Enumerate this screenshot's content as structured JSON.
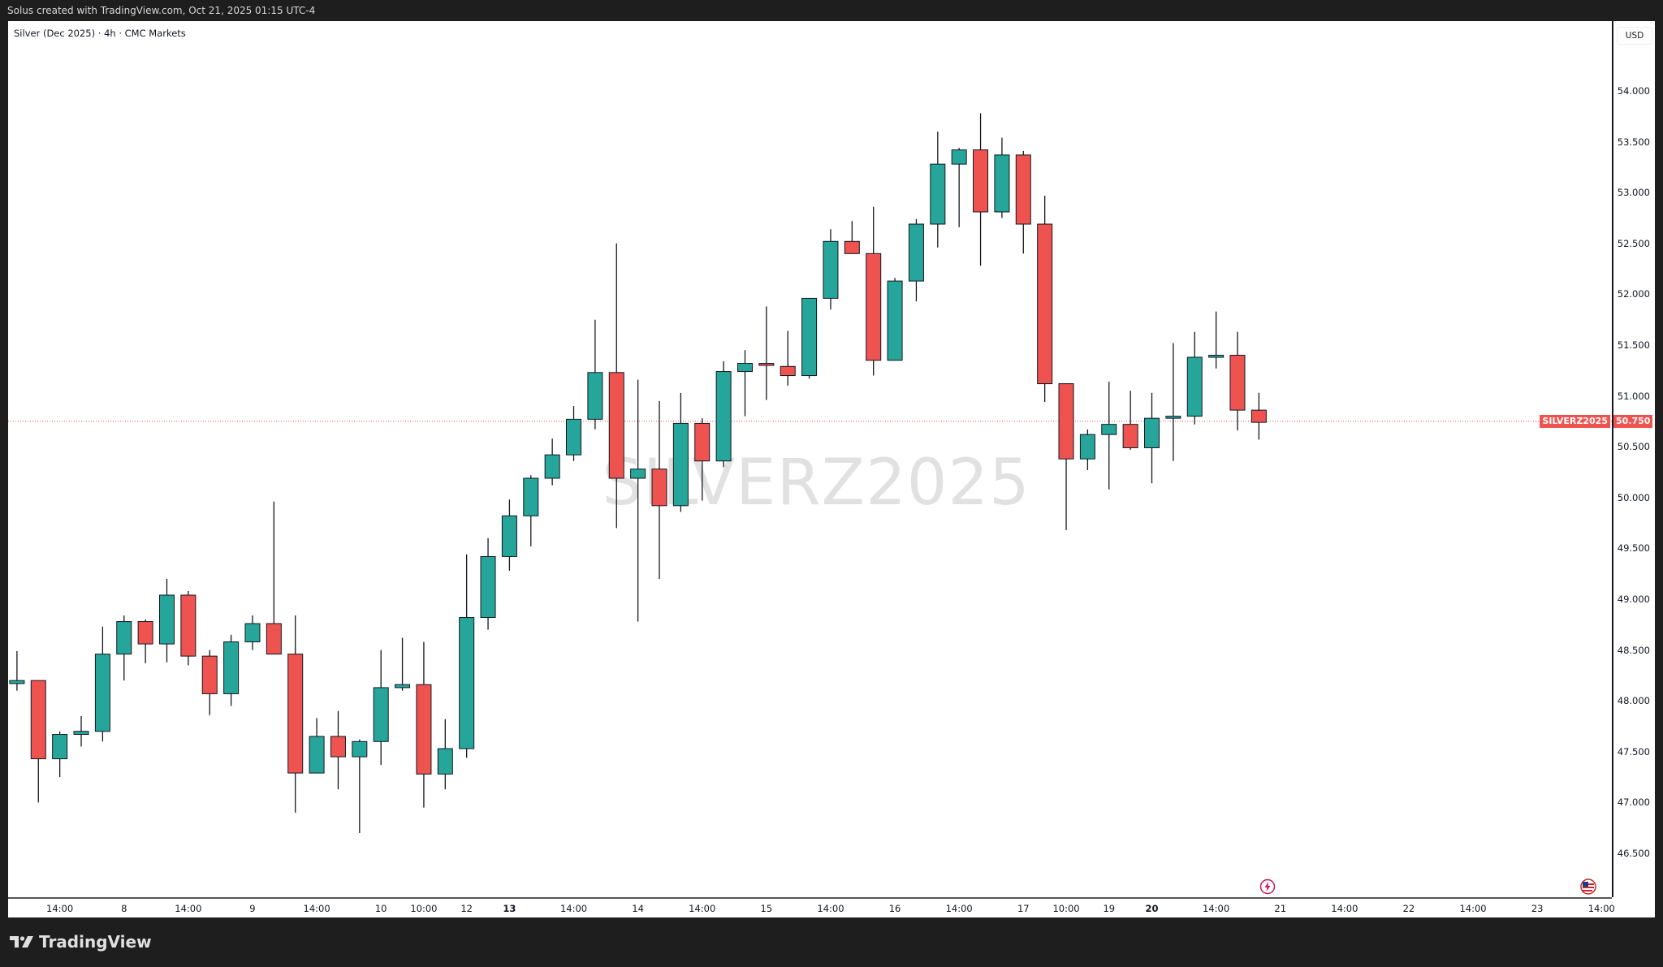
{
  "topbar": {
    "text": "Solus created with TradingView.com, Oct 21, 2025 01:15 UTC-4"
  },
  "legend": {
    "text": "Silver (Dec 2025) · 4h · CMC Markets"
  },
  "watermark": "SILVERZ2025",
  "price_axis": {
    "currency": "USD"
  },
  "current_price": {
    "symbol": "SILVERZ2025",
    "value": "50.750",
    "price": 50.75
  },
  "footer": {
    "brand": "TradingView"
  },
  "icons": [
    "lightning-icon",
    "us-flag-icon"
  ],
  "colors": {
    "up": "#26a69a",
    "down": "#ef5350",
    "price_line": "#ef5350"
  },
  "chart_data": {
    "type": "candlestick",
    "title": "Silver (Dec 2025) · 4h · CMC Markets",
    "ylim": [
      46.1,
      54.6
    ],
    "y_ticks": [
      "54.000",
      "53.500",
      "53.000",
      "52.500",
      "52.000",
      "51.500",
      "51.000",
      "50.500",
      "50.000",
      "49.500",
      "49.000",
      "48.500",
      "48.000",
      "47.500",
      "47.000",
      "46.500"
    ],
    "x_ticks": [
      {
        "label": "14:00",
        "bar": 2
      },
      {
        "label": "8",
        "bar": 5
      },
      {
        "label": "14:00",
        "bar": 8
      },
      {
        "label": "9",
        "bar": 11
      },
      {
        "label": "14:00",
        "bar": 14
      },
      {
        "label": "10",
        "bar": 17
      },
      {
        "label": "10:00",
        "bar": 19
      },
      {
        "label": "12",
        "bar": 21
      },
      {
        "label": "13",
        "bar": 23,
        "bold": true
      },
      {
        "label": "14:00",
        "bar": 26
      },
      {
        "label": "14",
        "bar": 29
      },
      {
        "label": "14:00",
        "bar": 32
      },
      {
        "label": "15",
        "bar": 35
      },
      {
        "label": "14:00",
        "bar": 38
      },
      {
        "label": "16",
        "bar": 41
      },
      {
        "label": "14:00",
        "bar": 44
      },
      {
        "label": "17",
        "bar": 47
      },
      {
        "label": "10:00",
        "bar": 49
      },
      {
        "label": "19",
        "bar": 51
      },
      {
        "label": "20",
        "bar": 53,
        "bold": true
      },
      {
        "label": "14:00",
        "bar": 56
      },
      {
        "label": "21",
        "bar": 59
      },
      {
        "label": "14:00",
        "bar": 62
      },
      {
        "label": "22",
        "bar": 65
      },
      {
        "label": "14:00",
        "bar": 68
      },
      {
        "label": "23",
        "bar": 71
      },
      {
        "label": "14:00",
        "bar": 74
      }
    ],
    "ohlc": [
      [
        48.17,
        48.49,
        48.1,
        48.2
      ],
      [
        48.2,
        48.2,
        47.0,
        47.43
      ],
      [
        47.43,
        47.7,
        47.25,
        47.67
      ],
      [
        47.67,
        47.85,
        47.55,
        47.7
      ],
      [
        47.7,
        48.73,
        47.6,
        48.46
      ],
      [
        48.46,
        48.84,
        48.2,
        48.78
      ],
      [
        48.78,
        48.8,
        48.37,
        48.56
      ],
      [
        48.56,
        49.2,
        48.38,
        49.04
      ],
      [
        49.04,
        49.08,
        48.35,
        48.44
      ],
      [
        48.44,
        48.5,
        47.86,
        48.07
      ],
      [
        48.07,
        48.65,
        47.95,
        48.58
      ],
      [
        48.58,
        48.84,
        48.5,
        48.76
      ],
      [
        48.76,
        49.96,
        48.46,
        48.46
      ],
      [
        48.46,
        48.84,
        46.9,
        47.29
      ],
      [
        47.29,
        47.83,
        47.29,
        47.65
      ],
      [
        47.65,
        47.9,
        47.13,
        47.45
      ],
      [
        47.45,
        47.62,
        46.7,
        47.6
      ],
      [
        47.6,
        48.5,
        47.37,
        48.13
      ],
      [
        48.13,
        48.62,
        48.1,
        48.16
      ],
      [
        48.16,
        48.58,
        46.95,
        47.28
      ],
      [
        47.28,
        47.82,
        47.13,
        47.53
      ],
      [
        47.53,
        49.44,
        47.44,
        48.82
      ],
      [
        48.82,
        49.6,
        48.7,
        49.42
      ],
      [
        49.42,
        49.98,
        49.28,
        49.82
      ],
      [
        49.82,
        50.22,
        49.52,
        50.19
      ],
      [
        50.19,
        50.58,
        50.12,
        50.42
      ],
      [
        50.42,
        50.9,
        50.36,
        50.77
      ],
      [
        50.77,
        51.75,
        50.67,
        51.23
      ],
      [
        51.23,
        52.5,
        49.7,
        50.19
      ],
      [
        50.19,
        51.16,
        48.78,
        50.28
      ],
      [
        50.28,
        50.95,
        49.2,
        49.92
      ],
      [
        49.92,
        51.03,
        49.86,
        50.73
      ],
      [
        50.73,
        50.78,
        49.97,
        50.36
      ],
      [
        50.36,
        51.34,
        50.3,
        51.24
      ],
      [
        51.24,
        51.45,
        50.8,
        51.32
      ],
      [
        51.32,
        51.88,
        50.96,
        51.3
      ],
      [
        51.29,
        51.64,
        51.1,
        51.2
      ],
      [
        51.2,
        51.96,
        51.17,
        51.96
      ],
      [
        51.96,
        52.64,
        51.85,
        52.52
      ],
      [
        52.52,
        52.72,
        52.4,
        52.4
      ],
      [
        52.4,
        52.86,
        51.2,
        51.35
      ],
      [
        51.35,
        52.16,
        51.35,
        52.13
      ],
      [
        52.13,
        52.74,
        51.93,
        52.69
      ],
      [
        52.69,
        53.6,
        52.46,
        53.28
      ],
      [
        53.28,
        53.44,
        52.66,
        53.42
      ],
      [
        53.42,
        53.78,
        52.28,
        52.81
      ],
      [
        52.81,
        53.54,
        52.75,
        53.37
      ],
      [
        53.37,
        53.41,
        52.4,
        52.69
      ],
      [
        52.69,
        52.97,
        50.94,
        51.12
      ],
      [
        51.12,
        51.12,
        49.68,
        50.38
      ],
      [
        50.38,
        50.67,
        50.27,
        50.62
      ],
      [
        50.62,
        51.14,
        50.08,
        50.72
      ],
      [
        50.72,
        51.05,
        50.47,
        50.49
      ],
      [
        50.49,
        51.03,
        50.14,
        50.78
      ],
      [
        50.78,
        51.52,
        50.36,
        50.8
      ],
      [
        50.8,
        51.63,
        50.72,
        51.38
      ],
      [
        51.38,
        51.83,
        51.27,
        51.4
      ],
      [
        51.4,
        51.63,
        50.66,
        50.86
      ],
      [
        50.86,
        51.03,
        50.57,
        50.74
      ]
    ]
  }
}
